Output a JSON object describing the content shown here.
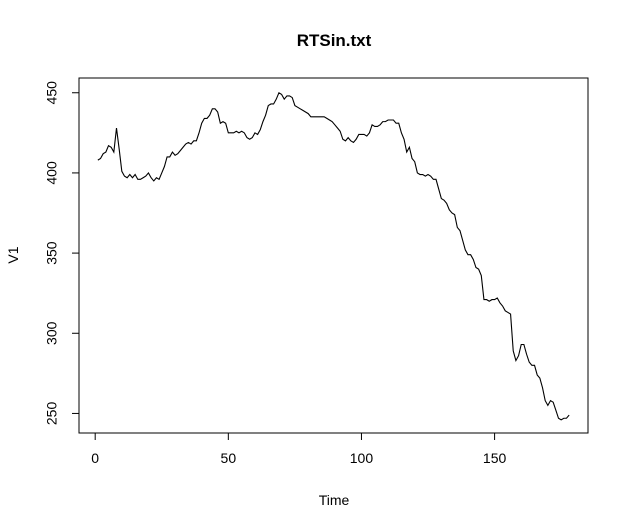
{
  "chart_data": {
    "type": "line",
    "title": "RTSin.txt",
    "x_label": "Time",
    "y_label": "V1",
    "x": [
      1,
      2,
      3,
      4,
      5,
      6,
      7,
      8,
      9,
      10,
      11,
      12,
      13,
      14,
      15,
      16,
      17,
      18,
      19,
      20,
      21,
      22,
      23,
      24,
      25,
      26,
      27,
      28,
      29,
      30,
      31,
      32,
      33,
      34,
      35,
      36,
      37,
      38,
      39,
      40,
      41,
      42,
      43,
      44,
      45,
      46,
      47,
      48,
      49,
      50,
      51,
      52,
      53,
      54,
      55,
      56,
      57,
      58,
      59,
      60,
      61,
      62,
      63,
      64,
      65,
      66,
      67,
      68,
      69,
      70,
      71,
      72,
      73,
      74,
      75,
      76,
      77,
      78,
      79,
      80,
      81,
      82,
      83,
      84,
      85,
      86,
      87,
      88,
      89,
      90,
      91,
      92,
      93,
      94,
      95,
      96,
      97,
      98,
      99,
      100,
      101,
      102,
      103,
      104,
      105,
      106,
      107,
      108,
      109,
      110,
      111,
      112,
      113,
      114,
      115,
      116,
      117,
      118,
      119,
      120,
      121,
      122,
      123,
      124,
      125,
      126,
      127,
      128,
      129,
      130,
      131,
      132,
      133,
      134,
      135,
      136,
      137,
      138,
      139,
      140,
      141,
      142,
      143,
      144,
      145,
      146,
      147,
      148,
      149,
      150,
      151,
      152,
      153,
      154,
      155,
      156,
      157,
      158,
      159,
      160,
      161,
      162,
      163,
      164,
      165,
      166,
      167,
      168,
      169,
      170,
      171,
      172,
      173,
      174,
      175,
      176,
      177,
      178
    ],
    "values": [
      408,
      409,
      412,
      413,
      417,
      416,
      413,
      428,
      415,
      401,
      398,
      397,
      399,
      397,
      399,
      396,
      396,
      397,
      398,
      400,
      397,
      395,
      397,
      396,
      400,
      404,
      410,
      410,
      413,
      411,
      412,
      414,
      416,
      418,
      419,
      418,
      420,
      420,
      425,
      431,
      434,
      434,
      436,
      440,
      440,
      438,
      431,
      432,
      431,
      425,
      425,
      425,
      426,
      425,
      426,
      425,
      422,
      421,
      422,
      425,
      424,
      427,
      432,
      436,
      442,
      443,
      443,
      446,
      450,
      449,
      446,
      448,
      448,
      447,
      442,
      441,
      440,
      439,
      438,
      437,
      435,
      435,
      435,
      435,
      435,
      435,
      434,
      433,
      432,
      430,
      428,
      426,
      421,
      420,
      422,
      420,
      419,
      421,
      424,
      424,
      424,
      423,
      425,
      430,
      429,
      429,
      430,
      432,
      432,
      433,
      433,
      433,
      431,
      431,
      425,
      421,
      413,
      416,
      409,
      407,
      400,
      399,
      399,
      398,
      399,
      398,
      396,
      396,
      390,
      384,
      383,
      381,
      377,
      375,
      374,
      366,
      364,
      358,
      352,
      349,
      349,
      346,
      341,
      340,
      336,
      321,
      321,
      320,
      321,
      321,
      322,
      319,
      317,
      314,
      313,
      312,
      289,
      283,
      286,
      293,
      293,
      287,
      282,
      280,
      280,
      274,
      272,
      266,
      258,
      255,
      258,
      257,
      252,
      247,
      246,
      247,
      247,
      249
    ],
    "color": "#000000",
    "xlim": [
      -6.08,
      185.08
    ],
    "xticks": [
      0,
      50,
      100,
      150
    ],
    "ylim": [
      237.8,
      459.2
    ],
    "yticks": [
      250,
      300,
      350,
      400,
      450
    ]
  }
}
